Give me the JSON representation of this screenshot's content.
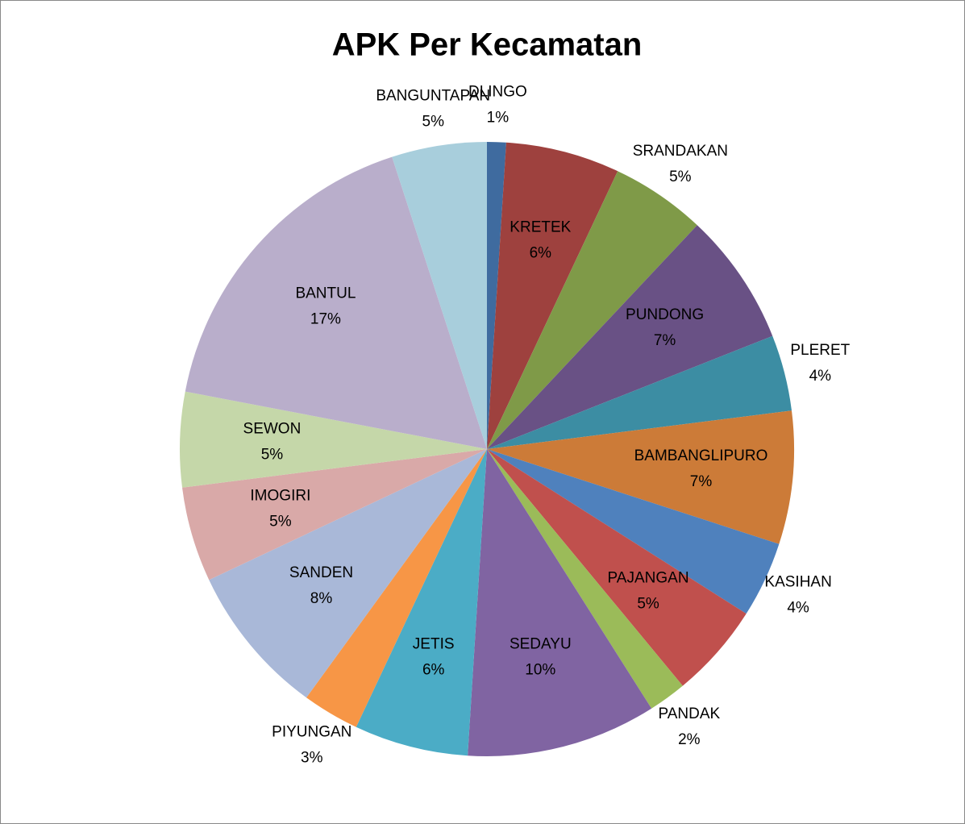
{
  "chart_data": {
    "type": "pie",
    "title": "APK Per Kecamatan",
    "labels": [
      "DLINGO",
      "KRETEK",
      "SRANDAKAN",
      "PUNDONG",
      "PLERET",
      "BAMBANGLIPURO",
      "KASIHAN",
      "PAJANGAN",
      "PANDAK",
      "SEDAYU",
      "JETIS",
      "PIYUNGAN",
      "SANDEN",
      "IMOGIRI",
      "SEWON",
      "BANTUL",
      "BANGUNTAPAN"
    ],
    "values": [
      1,
      6,
      5,
      7,
      4,
      7,
      4,
      5,
      2,
      10,
      6,
      3,
      8,
      5,
      5,
      17,
      5
    ],
    "value_labels": [
      "1%",
      "6%",
      "5%",
      "7%",
      "4%",
      "7%",
      "4%",
      "5%",
      "2%",
      "10%",
      "6%",
      "3%",
      "8%",
      "5%",
      "5%",
      "17%",
      "5%"
    ],
    "colors": [
      "#3f6b9f",
      "#9e413e",
      "#7f9a48",
      "#695185",
      "#3c8da3",
      "#cc7b38",
      "#4f81bd",
      "#c0504d",
      "#9bbb59",
      "#8064a2",
      "#4bacc6",
      "#f79646",
      "#a9b8d8",
      "#d9a9a8",
      "#c5d7a9",
      "#b9aecb",
      "#a8cedc"
    ]
  }
}
